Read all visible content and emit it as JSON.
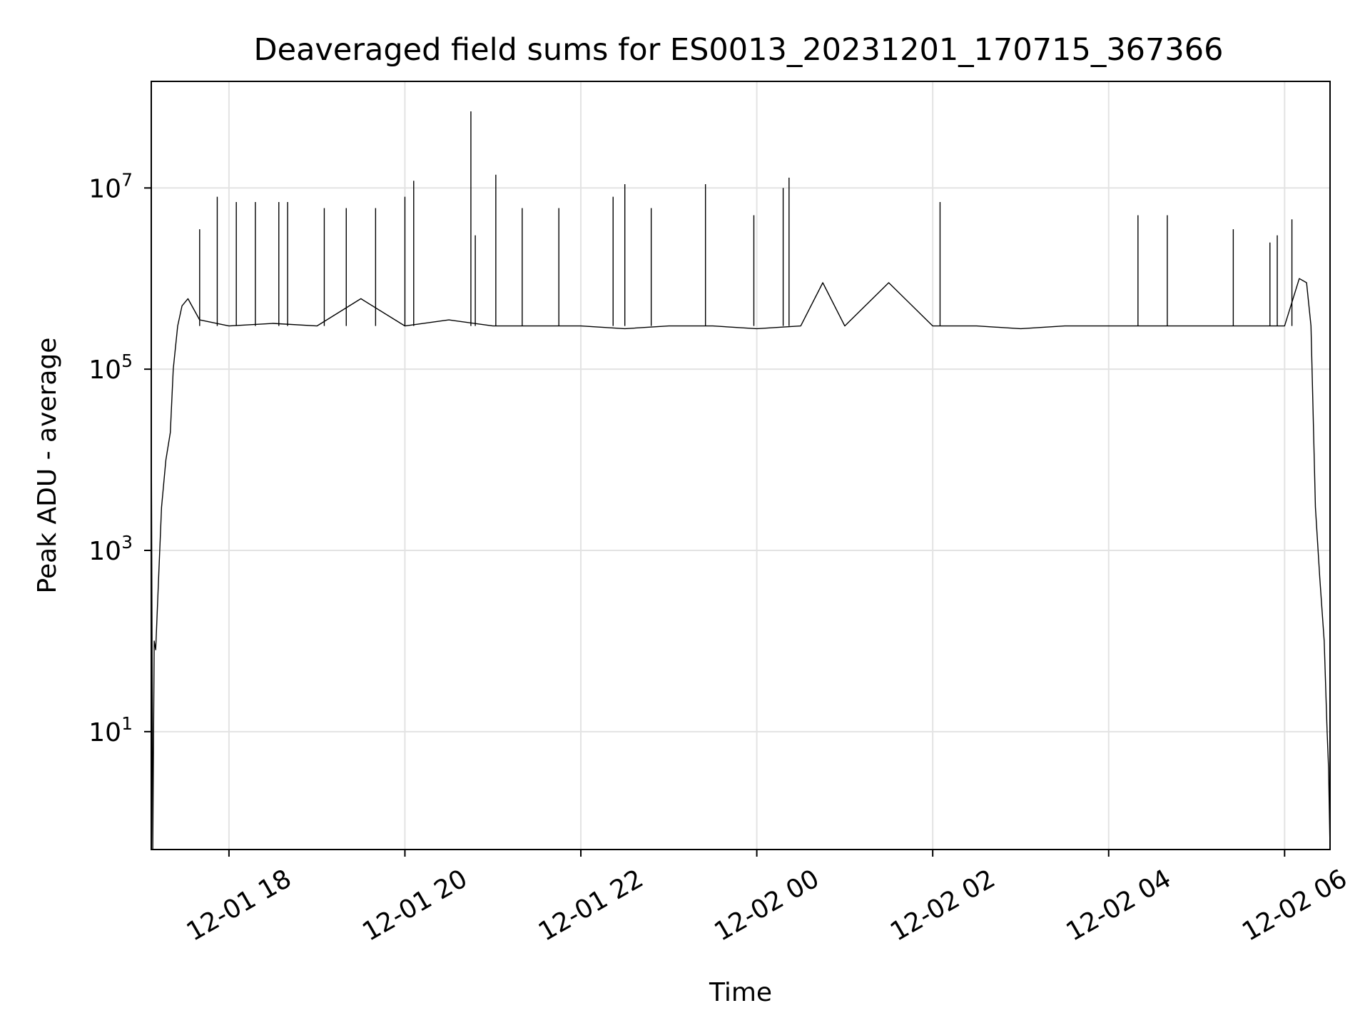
{
  "chart_data": {
    "type": "line",
    "title": "Deaveraged field sums for ES0013_20231201_170715_367366",
    "xlabel": "Time",
    "ylabel": "Peak ADU - average",
    "xscale": "time",
    "yscale": "log",
    "grid": true,
    "legend": "none",
    "xlim": [
      "2023-12-01 17:07",
      "2023-12-02 06:31"
    ],
    "ylim": [
      0.5,
      150000000
    ],
    "xticks": [
      "12-01 18",
      "12-01 20",
      "12-01 22",
      "12-02 00",
      "12-02 02",
      "12-02 04",
      "12-02 06"
    ],
    "xtick_values": [
      "2023-12-01 18:00",
      "2023-12-01 20:00",
      "2023-12-01 22:00",
      "2023-12-02 00:00",
      "2023-12-02 02:00",
      "2023-12-02 04:00",
      "2023-12-02 06:00"
    ],
    "ytick_values": [
      10,
      1000,
      100000,
      10000000
    ],
    "yticks": [
      {
        "base": "10",
        "exp": "1"
      },
      {
        "base": "10",
        "exp": "3"
      },
      {
        "base": "10",
        "exp": "5"
      },
      {
        "base": "10",
        "exp": "7"
      }
    ],
    "series": [
      {
        "color": "#000000",
        "x": [
          "2023-12-01 17:07",
          "2023-12-01 17:08",
          "2023-12-01 17:09",
          "2023-12-01 17:10",
          "2023-12-01 17:12",
          "2023-12-01 17:14",
          "2023-12-01 17:17",
          "2023-12-01 17:20",
          "2023-12-01 17:22",
          "2023-12-01 17:25",
          "2023-12-01 17:28",
          "2023-12-01 17:32",
          "2023-12-01 17:40",
          "2023-12-01 18:00",
          "2023-12-01 18:30",
          "2023-12-01 19:00",
          "2023-12-01 19:30",
          "2023-12-01 20:00",
          "2023-12-01 20:30",
          "2023-12-01 21:00",
          "2023-12-01 21:30",
          "2023-12-01 22:00",
          "2023-12-01 22:30",
          "2023-12-01 23:00",
          "2023-12-01 23:30",
          "2023-12-02 00:00",
          "2023-12-02 00:30",
          "2023-12-02 00:45",
          "2023-12-02 01:00",
          "2023-12-02 01:30",
          "2023-12-02 02:00",
          "2023-12-02 02:30",
          "2023-12-02 03:00",
          "2023-12-02 03:30",
          "2023-12-02 04:00",
          "2023-12-02 04:30",
          "2023-12-02 05:00",
          "2023-12-02 05:30",
          "2023-12-02 06:00",
          "2023-12-02 06:10",
          "2023-12-02 06:15",
          "2023-12-02 06:18",
          "2023-12-02 06:21",
          "2023-12-02 06:24",
          "2023-12-02 06:27",
          "2023-12-02 06:29",
          "2023-12-02 06:30",
          "2023-12-02 06:31"
        ],
        "y": [
          30000,
          0.5,
          100,
          80,
          500,
          3000,
          10000,
          20000,
          100000,
          300000,
          500000,
          600000,
          350000,
          300000,
          320000,
          300000,
          600000,
          300000,
          350000,
          300000,
          300000,
          300000,
          280000,
          300000,
          300000,
          280000,
          300000,
          900000,
          300000,
          900000,
          300000,
          300000,
          280000,
          300000,
          300000,
          300000,
          300000,
          300000,
          300000,
          1000000,
          900000,
          300000,
          3000,
          500,
          100,
          10,
          4,
          0.5
        ]
      }
    ],
    "spikes": {
      "x": [
        "2023-12-01 17:40",
        "2023-12-01 17:52",
        "2023-12-01 18:05",
        "2023-12-01 18:18",
        "2023-12-01 18:34",
        "2023-12-01 18:40",
        "2023-12-01 19:05",
        "2023-12-01 19:20",
        "2023-12-01 19:40",
        "2023-12-01 20:00",
        "2023-12-01 20:06",
        "2023-12-01 20:45",
        "2023-12-01 20:48",
        "2023-12-01 21:02",
        "2023-12-01 21:20",
        "2023-12-01 21:45",
        "2023-12-01 22:22",
        "2023-12-01 22:30",
        "2023-12-01 22:48",
        "2023-12-01 23:25",
        "2023-12-01 23:58",
        "2023-12-02 00:18",
        "2023-12-02 00:22",
        "2023-12-02 02:05",
        "2023-12-02 04:20",
        "2023-12-02 04:40",
        "2023-12-02 05:25",
        "2023-12-02 05:50",
        "2023-12-02 05:55",
        "2023-12-02 06:05"
      ],
      "y": [
        3500000,
        8000000,
        7000000,
        7000000,
        7000000,
        7000000,
        6000000,
        6000000,
        6000000,
        8000000,
        12000000,
        70000000,
        3000000,
        14000000,
        6000000,
        6000000,
        8000000,
        11000000,
        6000000,
        11000000,
        5000000,
        10000000,
        13000000,
        7000000,
        5000000,
        5000000,
        3500000,
        2500000,
        3000000,
        4500000
      ]
    }
  }
}
